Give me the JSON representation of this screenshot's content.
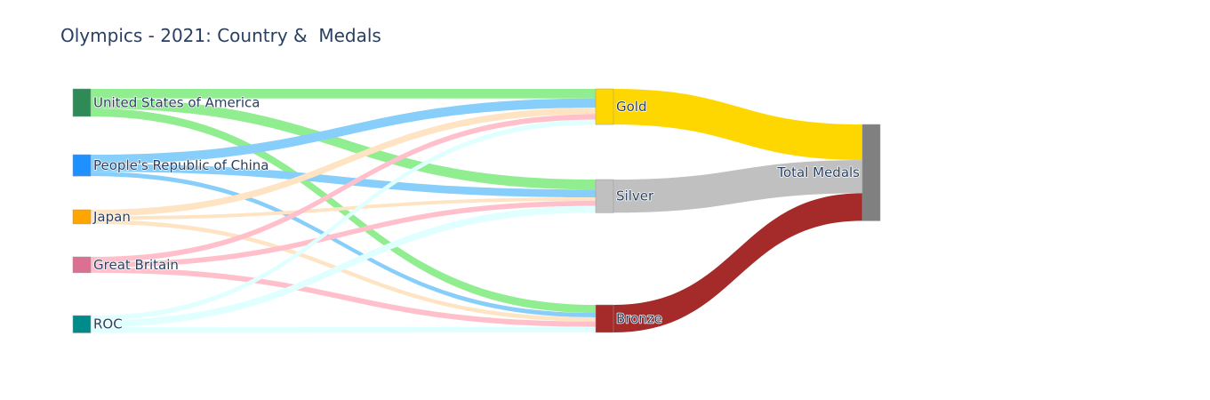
{
  "chart_data": {
    "type": "sankey",
    "title": "Olympics - 2021: Country &  Medals",
    "nodes": [
      {
        "id": "usa",
        "label": "United States of America",
        "color": "#2e8b57"
      },
      {
        "id": "china",
        "label": "People's Republic of China",
        "color": "#1e90ff"
      },
      {
        "id": "japan",
        "label": "Japan",
        "color": "#ffa500"
      },
      {
        "id": "gb",
        "label": "Great Britain",
        "color": "#db7093"
      },
      {
        "id": "roc",
        "label": "ROC",
        "color": "#008b8b"
      },
      {
        "id": "gold",
        "label": "Gold",
        "color": "#ffd700"
      },
      {
        "id": "silver",
        "label": "Silver",
        "color": "#c0c0c0"
      },
      {
        "id": "bronze",
        "label": "Bronze",
        "color": "#a52a2a"
      },
      {
        "id": "total",
        "label": "Total Medals",
        "color": "#808080"
      }
    ],
    "links": [
      {
        "source": "usa",
        "target": "gold",
        "value": 39,
        "color": "#90ee90"
      },
      {
        "source": "usa",
        "target": "silver",
        "value": 41,
        "color": "#90ee90"
      },
      {
        "source": "usa",
        "target": "bronze",
        "value": 33,
        "color": "#90ee90"
      },
      {
        "source": "china",
        "target": "gold",
        "value": 38,
        "color": "#87cefa"
      },
      {
        "source": "china",
        "target": "silver",
        "value": 32,
        "color": "#87cefa"
      },
      {
        "source": "china",
        "target": "bronze",
        "value": 18,
        "color": "#87cefa"
      },
      {
        "source": "japan",
        "target": "gold",
        "value": 27,
        "color": "#ffe4c4"
      },
      {
        "source": "japan",
        "target": "silver",
        "value": 14,
        "color": "#ffe4c4"
      },
      {
        "source": "japan",
        "target": "bronze",
        "value": 17,
        "color": "#ffe4c4"
      },
      {
        "source": "gb",
        "target": "gold",
        "value": 22,
        "color": "#ffc0cb"
      },
      {
        "source": "gb",
        "target": "silver",
        "value": 21,
        "color": "#ffc0cb"
      },
      {
        "source": "gb",
        "target": "bronze",
        "value": 22,
        "color": "#ffc0cb"
      },
      {
        "source": "roc",
        "target": "gold",
        "value": 20,
        "color": "#e0ffff"
      },
      {
        "source": "roc",
        "target": "silver",
        "value": 28,
        "color": "#e0ffff"
      },
      {
        "source": "roc",
        "target": "bronze",
        "value": 23,
        "color": "#e0ffff"
      },
      {
        "source": "gold",
        "target": "total",
        "value": 146,
        "color": "#ffd700"
      },
      {
        "source": "silver",
        "target": "total",
        "value": 136,
        "color": "#c0c0c0"
      },
      {
        "source": "bronze",
        "target": "total",
        "value": 113,
        "color": "#a52a2a"
      }
    ]
  }
}
